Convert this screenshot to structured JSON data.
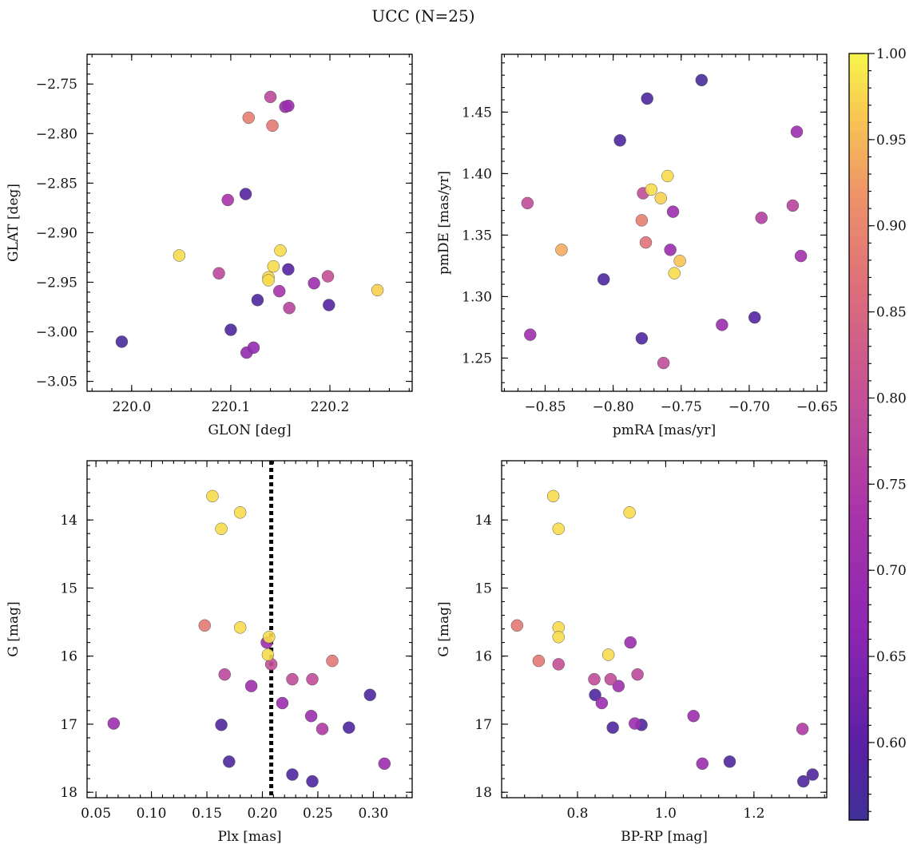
{
  "figure": {
    "title": "UCC (N=25)"
  },
  "colorbar": {
    "min": 0.555,
    "max": 1.0,
    "ticks": [
      "0.60",
      "0.65",
      "0.70",
      "0.75",
      "0.80",
      "0.85",
      "0.90",
      "0.95",
      "1.00"
    ],
    "colormap": "plasma"
  },
  "chart_data": [
    {
      "type": "scatter",
      "name": "lb",
      "xlabel": "GLON [deg]",
      "ylabel": "GLAT [deg]",
      "xlim": [
        219.955,
        220.283
      ],
      "ylim": [
        -3.06,
        -2.72
      ],
      "y_inverted": false,
      "xticks": [
        "220.0",
        "220.1",
        "220.2"
      ],
      "yticks": [
        "−2.75",
        "−2.80",
        "−2.85",
        "−2.90",
        "−2.95",
        "−3.00",
        "−3.05"
      ],
      "points": [
        {
          "x": 219.99,
          "y": -3.01,
          "c": 0.57
        },
        {
          "x": 220.1,
          "y": -2.998,
          "c": 0.58
        },
        {
          "x": 220.127,
          "y": -2.968,
          "c": 0.58
        },
        {
          "x": 220.115,
          "y": -2.861,
          "c": 0.59
        },
        {
          "x": 220.158,
          "y": -2.937,
          "c": 0.59
        },
        {
          "x": 220.199,
          "y": -2.973,
          "c": 0.59
        },
        {
          "x": 220.116,
          "y": -3.021,
          "c": 0.68
        },
        {
          "x": 220.123,
          "y": -3.016,
          "c": 0.68
        },
        {
          "x": 220.155,
          "y": -2.773,
          "c": 0.7
        },
        {
          "x": 220.158,
          "y": -2.772,
          "c": 0.7
        },
        {
          "x": 220.184,
          "y": -2.951,
          "c": 0.7
        },
        {
          "x": 220.097,
          "y": -2.867,
          "c": 0.73
        },
        {
          "x": 220.149,
          "y": -2.959,
          "c": 0.73
        },
        {
          "x": 220.159,
          "y": -2.976,
          "c": 0.77
        },
        {
          "x": 220.14,
          "y": -2.763,
          "c": 0.78
        },
        {
          "x": 220.088,
          "y": -2.941,
          "c": 0.78
        },
        {
          "x": 220.198,
          "y": -2.944,
          "c": 0.8
        },
        {
          "x": 220.142,
          "y": -2.792,
          "c": 0.88
        },
        {
          "x": 220.118,
          "y": -2.784,
          "c": 0.89
        },
        {
          "x": 220.048,
          "y": -2.923,
          "c": 0.98
        },
        {
          "x": 220.15,
          "y": -2.918,
          "c": 0.98
        },
        {
          "x": 220.143,
          "y": -2.934,
          "c": 0.98
        },
        {
          "x": 220.138,
          "y": -2.945,
          "c": 0.98
        },
        {
          "x": 220.138,
          "y": -2.948,
          "c": 0.98
        },
        {
          "x": 220.248,
          "y": -2.958,
          "c": 0.97
        }
      ]
    },
    {
      "type": "scatter",
      "name": "pm",
      "xlabel": "pmRA [mas/yr]",
      "ylabel": "pmDE [mas/yr]",
      "xlim": [
        -0.882,
        -0.643
      ],
      "ylim": [
        1.223,
        1.497
      ],
      "y_inverted": false,
      "xticks": [
        "−0.85",
        "−0.80",
        "−0.75",
        "−0.70",
        "−0.65"
      ],
      "yticks": [
        "1.45",
        "1.40",
        "1.35",
        "1.30",
        "1.25"
      ],
      "points": [
        {
          "x": -0.735,
          "y": 1.476,
          "c": 0.57
        },
        {
          "x": -0.775,
          "y": 1.461,
          "c": 0.58
        },
        {
          "x": -0.795,
          "y": 1.427,
          "c": 0.58
        },
        {
          "x": -0.807,
          "y": 1.314,
          "c": 0.58
        },
        {
          "x": -0.779,
          "y": 1.266,
          "c": 0.58
        },
        {
          "x": -0.696,
          "y": 1.283,
          "c": 0.59
        },
        {
          "x": -0.665,
          "y": 1.434,
          "c": 0.7
        },
        {
          "x": -0.756,
          "y": 1.369,
          "c": 0.7
        },
        {
          "x": -0.758,
          "y": 1.338,
          "c": 0.7
        },
        {
          "x": -0.72,
          "y": 1.277,
          "c": 0.7
        },
        {
          "x": -0.861,
          "y": 1.269,
          "c": 0.71
        },
        {
          "x": -0.662,
          "y": 1.333,
          "c": 0.72
        },
        {
          "x": -0.691,
          "y": 1.364,
          "c": 0.76
        },
        {
          "x": -0.668,
          "y": 1.374,
          "c": 0.77
        },
        {
          "x": -0.863,
          "y": 1.376,
          "c": 0.79
        },
        {
          "x": -0.778,
          "y": 1.384,
          "c": 0.79
        },
        {
          "x": -0.763,
          "y": 1.246,
          "c": 0.79
        },
        {
          "x": -0.776,
          "y": 1.344,
          "c": 0.87
        },
        {
          "x": -0.779,
          "y": 1.362,
          "c": 0.89
        },
        {
          "x": -0.838,
          "y": 1.338,
          "c": 0.94
        },
        {
          "x": -0.765,
          "y": 1.38,
          "c": 0.97
        },
        {
          "x": -0.76,
          "y": 1.398,
          "c": 0.98
        },
        {
          "x": -0.772,
          "y": 1.387,
          "c": 0.98
        },
        {
          "x": -0.751,
          "y": 1.329,
          "c": 0.96
        },
        {
          "x": -0.755,
          "y": 1.319,
          "c": 0.98
        }
      ]
    },
    {
      "type": "scatter",
      "name": "plx",
      "xlabel": "Plx [mas]",
      "ylabel": "G [mag]",
      "xlim": [
        0.042,
        0.335
      ],
      "ylim": [
        18.08,
        13.13
      ],
      "y_inverted": true,
      "xticks": [
        "0.05",
        "0.10",
        "0.15",
        "0.20",
        "0.25",
        "0.30"
      ],
      "yticks": [
        "14",
        "15",
        "16",
        "17",
        "18"
      ],
      "vline": 0.208,
      "points": [
        {
          "x": 0.155,
          "y": 13.65,
          "c": 0.98
        },
        {
          "x": 0.18,
          "y": 13.89,
          "c": 0.98
        },
        {
          "x": 0.163,
          "y": 14.13,
          "c": 0.98
        },
        {
          "x": 0.148,
          "y": 15.55,
          "c": 0.88
        },
        {
          "x": 0.18,
          "y": 15.58,
          "c": 0.98
        },
        {
          "x": 0.206,
          "y": 15.72,
          "c": 0.98
        },
        {
          "x": 0.204,
          "y": 15.8,
          "c": 0.7
        },
        {
          "x": 0.205,
          "y": 15.98,
          "c": 0.98
        },
        {
          "x": 0.208,
          "y": 16.12,
          "c": 0.8
        },
        {
          "x": 0.263,
          "y": 16.07,
          "c": 0.88
        },
        {
          "x": 0.166,
          "y": 16.27,
          "c": 0.78
        },
        {
          "x": 0.227,
          "y": 16.34,
          "c": 0.79
        },
        {
          "x": 0.245,
          "y": 16.34,
          "c": 0.79
        },
        {
          "x": 0.19,
          "y": 16.44,
          "c": 0.71
        },
        {
          "x": 0.297,
          "y": 16.57,
          "c": 0.58
        },
        {
          "x": 0.218,
          "y": 16.69,
          "c": 0.7
        },
        {
          "x": 0.244,
          "y": 16.88,
          "c": 0.7
        },
        {
          "x": 0.066,
          "y": 16.99,
          "c": 0.7
        },
        {
          "x": 0.163,
          "y": 17.01,
          "c": 0.58
        },
        {
          "x": 0.278,
          "y": 17.05,
          "c": 0.58
        },
        {
          "x": 0.254,
          "y": 17.07,
          "c": 0.75
        },
        {
          "x": 0.17,
          "y": 17.55,
          "c": 0.58
        },
        {
          "x": 0.31,
          "y": 17.58,
          "c": 0.7
        },
        {
          "x": 0.227,
          "y": 17.74,
          "c": 0.58
        },
        {
          "x": 0.245,
          "y": 17.84,
          "c": 0.58
        }
      ]
    },
    {
      "type": "scatter",
      "name": "cmd",
      "xlabel": "BP-RP [mag]",
      "ylabel": "G [mag]",
      "xlim": [
        0.628,
        1.365
      ],
      "ylim": [
        18.08,
        13.13
      ],
      "y_inverted": true,
      "xticks": [
        "0.8",
        "1.0",
        "1.2"
      ],
      "yticks": [
        "14",
        "15",
        "16",
        "17",
        "18"
      ],
      "points": [
        {
          "x": 0.745,
          "y": 13.65,
          "c": 0.98
        },
        {
          "x": 0.918,
          "y": 13.89,
          "c": 0.98
        },
        {
          "x": 0.757,
          "y": 14.13,
          "c": 0.98
        },
        {
          "x": 0.663,
          "y": 15.55,
          "c": 0.88
        },
        {
          "x": 0.757,
          "y": 15.58,
          "c": 0.98
        },
        {
          "x": 0.757,
          "y": 15.72,
          "c": 0.98
        },
        {
          "x": 0.92,
          "y": 15.8,
          "c": 0.7
        },
        {
          "x": 0.87,
          "y": 15.98,
          "c": 0.98
        },
        {
          "x": 0.757,
          "y": 16.12,
          "c": 0.8
        },
        {
          "x": 0.712,
          "y": 16.07,
          "c": 0.88
        },
        {
          "x": 0.936,
          "y": 16.27,
          "c": 0.78
        },
        {
          "x": 0.838,
          "y": 16.34,
          "c": 0.79
        },
        {
          "x": 0.875,
          "y": 16.34,
          "c": 0.79
        },
        {
          "x": 0.893,
          "y": 16.44,
          "c": 0.71
        },
        {
          "x": 0.84,
          "y": 16.57,
          "c": 0.58
        },
        {
          "x": 0.855,
          "y": 16.69,
          "c": 0.7
        },
        {
          "x": 1.063,
          "y": 16.88,
          "c": 0.7
        },
        {
          "x": 0.93,
          "y": 16.99,
          "c": 0.7
        },
        {
          "x": 0.945,
          "y": 17.01,
          "c": 0.58
        },
        {
          "x": 0.88,
          "y": 17.05,
          "c": 0.58
        },
        {
          "x": 1.31,
          "y": 17.07,
          "c": 0.75
        },
        {
          "x": 1.145,
          "y": 17.55,
          "c": 0.58
        },
        {
          "x": 1.083,
          "y": 17.58,
          "c": 0.7
        },
        {
          "x": 1.333,
          "y": 17.74,
          "c": 0.58
        },
        {
          "x": 1.312,
          "y": 17.84,
          "c": 0.58
        }
      ]
    }
  ]
}
